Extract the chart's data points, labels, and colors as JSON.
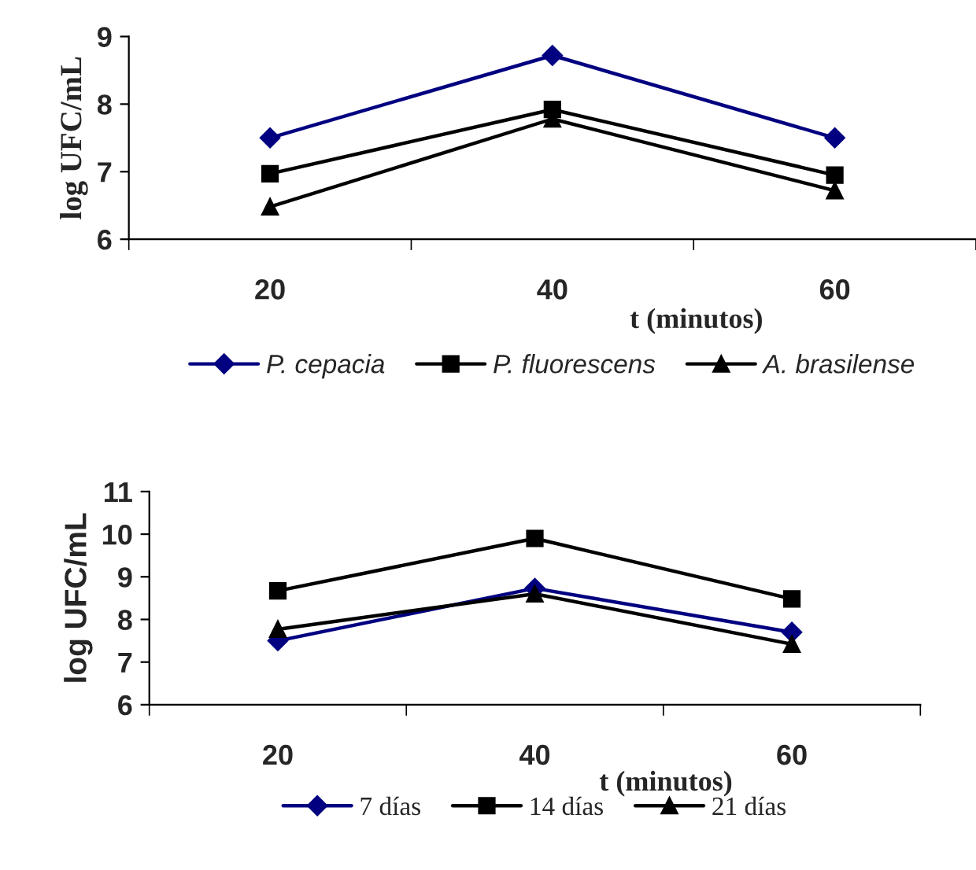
{
  "chart_data": [
    {
      "type": "line",
      "categories": [
        "20",
        "40",
        "60"
      ],
      "xlabel": "t (minutos)",
      "ylabel": "log UFC/mL",
      "ylim": [
        6,
        9
      ],
      "yticks": [
        6,
        7,
        8,
        9
      ],
      "grid": false,
      "legend": "bottom",
      "series": [
        {
          "name": "P. cepacia",
          "color": "#000080",
          "marker": "diamond",
          "values": [
            7.5,
            8.72,
            7.5
          ]
        },
        {
          "name": "P. fluorescens",
          "color": "#000000",
          "marker": "square",
          "values": [
            6.97,
            7.92,
            6.95
          ]
        },
        {
          "name": "A. brasilense",
          "color": "#000000",
          "marker": "triangle",
          "values": [
            6.48,
            7.78,
            6.72
          ]
        }
      ]
    },
    {
      "type": "line",
      "categories": [
        "20",
        "40",
        "60"
      ],
      "xlabel": "t (minutos)",
      "ylabel": "log UFC/mL",
      "ylim": [
        6,
        11
      ],
      "yticks": [
        6,
        7,
        8,
        9,
        10,
        11
      ],
      "grid": false,
      "legend": "bottom",
      "series": [
        {
          "name": "7 días",
          "color": "#000080",
          "marker": "diamond",
          "values": [
            7.5,
            8.73,
            7.7
          ]
        },
        {
          "name": "14 días",
          "color": "#000000",
          "marker": "square",
          "values": [
            8.67,
            9.9,
            8.48
          ]
        },
        {
          "name": "21 días",
          "color": "#000000",
          "marker": "triangle",
          "values": [
            7.77,
            8.6,
            7.42
          ]
        }
      ]
    }
  ]
}
